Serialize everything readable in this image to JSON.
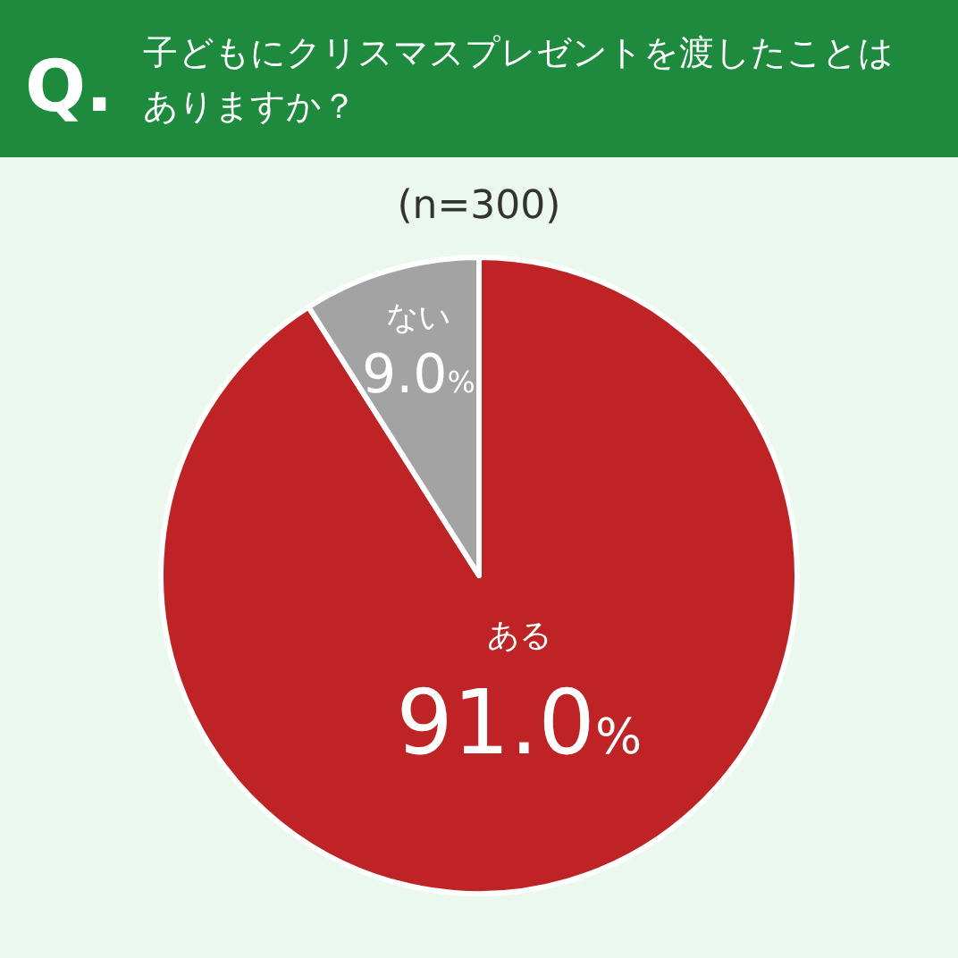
{
  "chart_data": {
    "type": "pie",
    "title": "子どもにクリスマスプレゼントを渡したことはありますか？",
    "subtitle": "(n=300)",
    "annotations": [
      "Q."
    ],
    "categories": [
      "ある",
      "ない"
    ],
    "values": [
      91.0,
      9.0
    ],
    "colors": [
      "#be2426",
      "#a3a3a3"
    ],
    "value_labels": [
      "91.0%",
      "9.0%"
    ],
    "legend": false
  }
}
